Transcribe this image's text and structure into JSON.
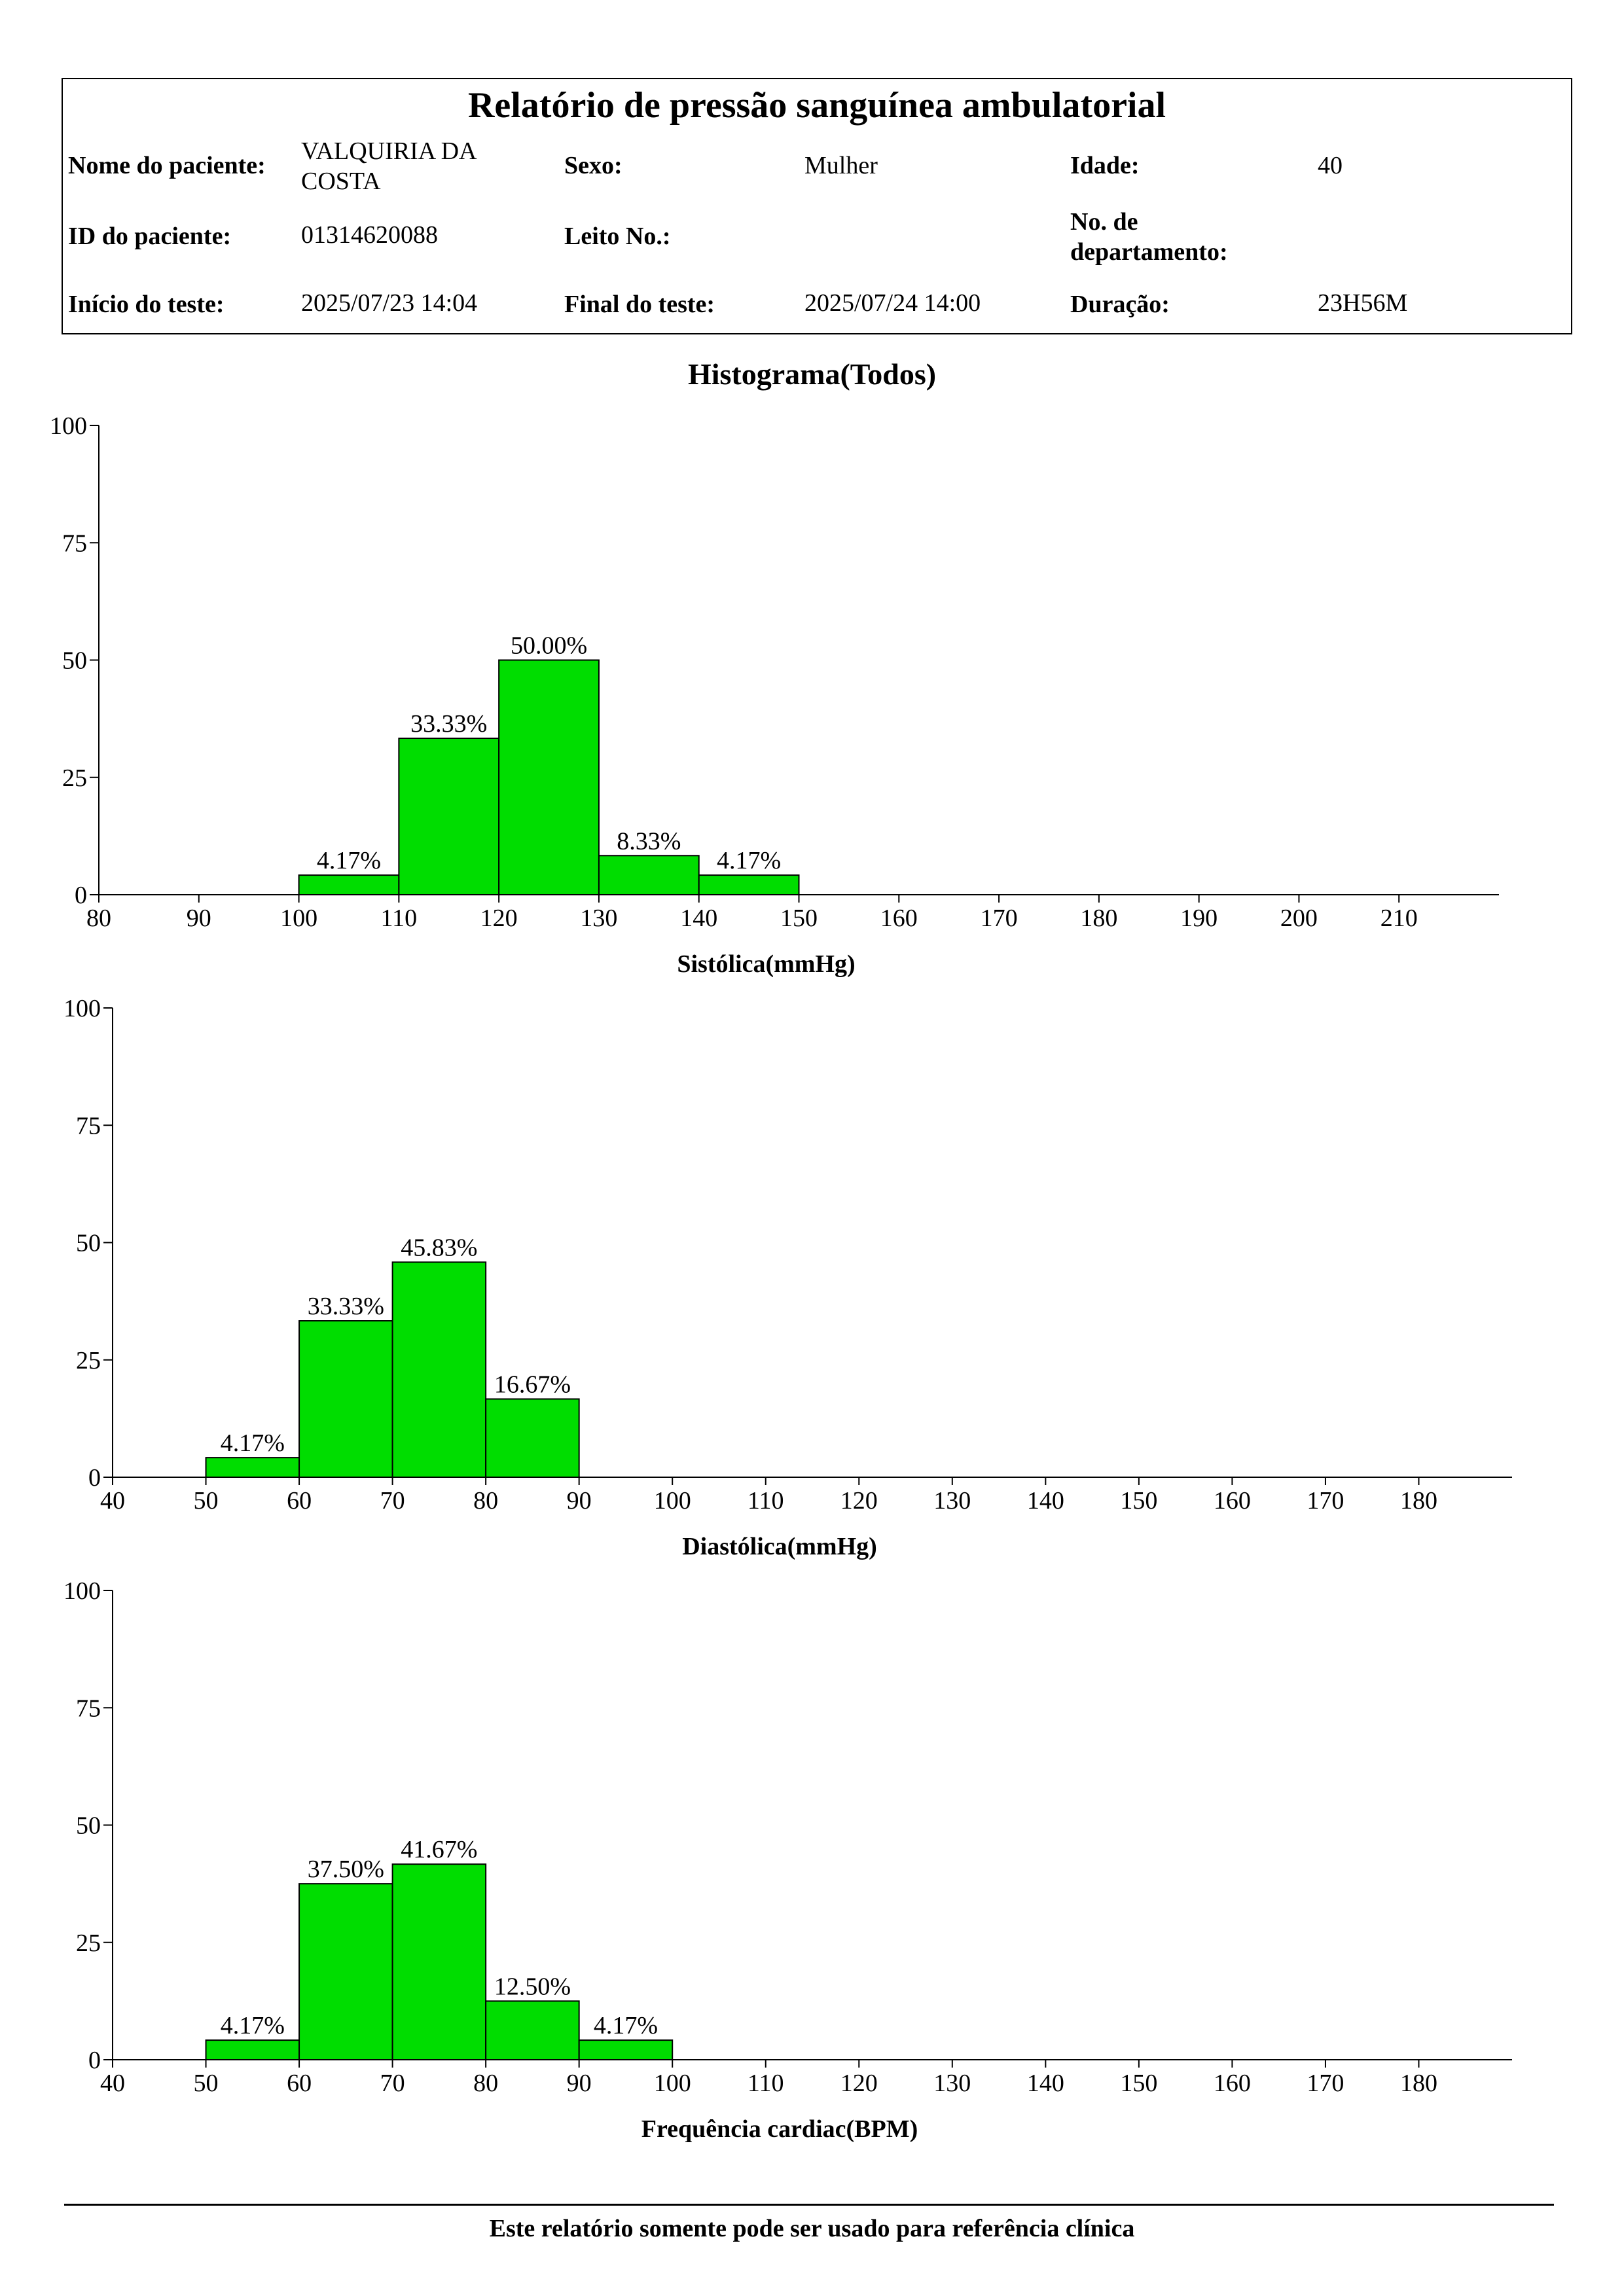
{
  "report": {
    "title": "Relatório de pressão sanguínea ambulatorial",
    "patient_name_label": "Nome do paciente:",
    "patient_name_line1": "VALQUIRIA DA",
    "patient_name_line2": "COSTA",
    "sex_label": "Sexo:",
    "sex_value": "Mulher",
    "age_label": "Idade:",
    "age_value": "40",
    "patient_id_label": "ID do paciente:",
    "patient_id_value": "01314620088",
    "bed_label": "Leito No.:",
    "bed_value": "",
    "dept_label_line1": "No. de",
    "dept_label_line2": "departamento:",
    "dept_value": "",
    "start_label": "Início do teste:",
    "start_value": "2025/07/23 14:04",
    "end_label": "Final do teste:",
    "end_value": "2025/07/24 14:00",
    "duration_label": "Duração:",
    "duration_value": "23H56M"
  },
  "section_title": "Histograma(Todos)",
  "footer": "Este relatório somente pode ser usado para referência clínica",
  "colors": {
    "bar_fill": "#00dd00",
    "bar_stroke": "#000000"
  },
  "chart_data": [
    {
      "type": "bar",
      "title": "",
      "xlabel": "Sistólica(mmHg)",
      "ylabel": "",
      "xlim": [
        80,
        220
      ],
      "ylim": [
        0,
        100
      ],
      "x_ticks": [
        80,
        90,
        100,
        110,
        120,
        130,
        140,
        150,
        160,
        170,
        180,
        190,
        200,
        210
      ],
      "y_ticks": [
        0,
        25,
        50,
        75,
        100
      ],
      "bin_width": 10,
      "bins": [
        {
          "start": 100,
          "value": 4.17,
          "label": "4.17%"
        },
        {
          "start": 110,
          "value": 33.33,
          "label": "33.33%"
        },
        {
          "start": 120,
          "value": 50.0,
          "label": "50.00%"
        },
        {
          "start": 130,
          "value": 8.33,
          "label": "8.33%"
        },
        {
          "start": 140,
          "value": 4.17,
          "label": "4.17%"
        }
      ]
    },
    {
      "type": "bar",
      "title": "",
      "xlabel": "Diastólica(mmHg)",
      "ylabel": "",
      "xlim": [
        40,
        190
      ],
      "ylim": [
        0,
        100
      ],
      "x_ticks": [
        40,
        50,
        60,
        70,
        80,
        90,
        100,
        110,
        120,
        130,
        140,
        150,
        160,
        170,
        180
      ],
      "y_ticks": [
        0,
        25,
        50,
        75,
        100
      ],
      "bin_width": 10,
      "bins": [
        {
          "start": 50,
          "value": 4.17,
          "label": "4.17%"
        },
        {
          "start": 60,
          "value": 33.33,
          "label": "33.33%"
        },
        {
          "start": 70,
          "value": 45.83,
          "label": "45.83%"
        },
        {
          "start": 80,
          "value": 16.67,
          "label": "16.67%"
        }
      ]
    },
    {
      "type": "bar",
      "title": "",
      "xlabel": "Frequência cardiac(BPM)",
      "ylabel": "",
      "xlim": [
        40,
        190
      ],
      "ylim": [
        0,
        100
      ],
      "x_ticks": [
        40,
        50,
        60,
        70,
        80,
        90,
        100,
        110,
        120,
        130,
        140,
        150,
        160,
        170,
        180
      ],
      "y_ticks": [
        0,
        25,
        50,
        75,
        100
      ],
      "bin_width": 10,
      "bins": [
        {
          "start": 50,
          "value": 4.17,
          "label": "4.17%"
        },
        {
          "start": 60,
          "value": 37.5,
          "label": "37.50%"
        },
        {
          "start": 70,
          "value": 41.67,
          "label": "41.67%"
        },
        {
          "start": 80,
          "value": 12.5,
          "label": "12.50%"
        },
        {
          "start": 90,
          "value": 4.17,
          "label": "4.17%"
        }
      ]
    }
  ]
}
